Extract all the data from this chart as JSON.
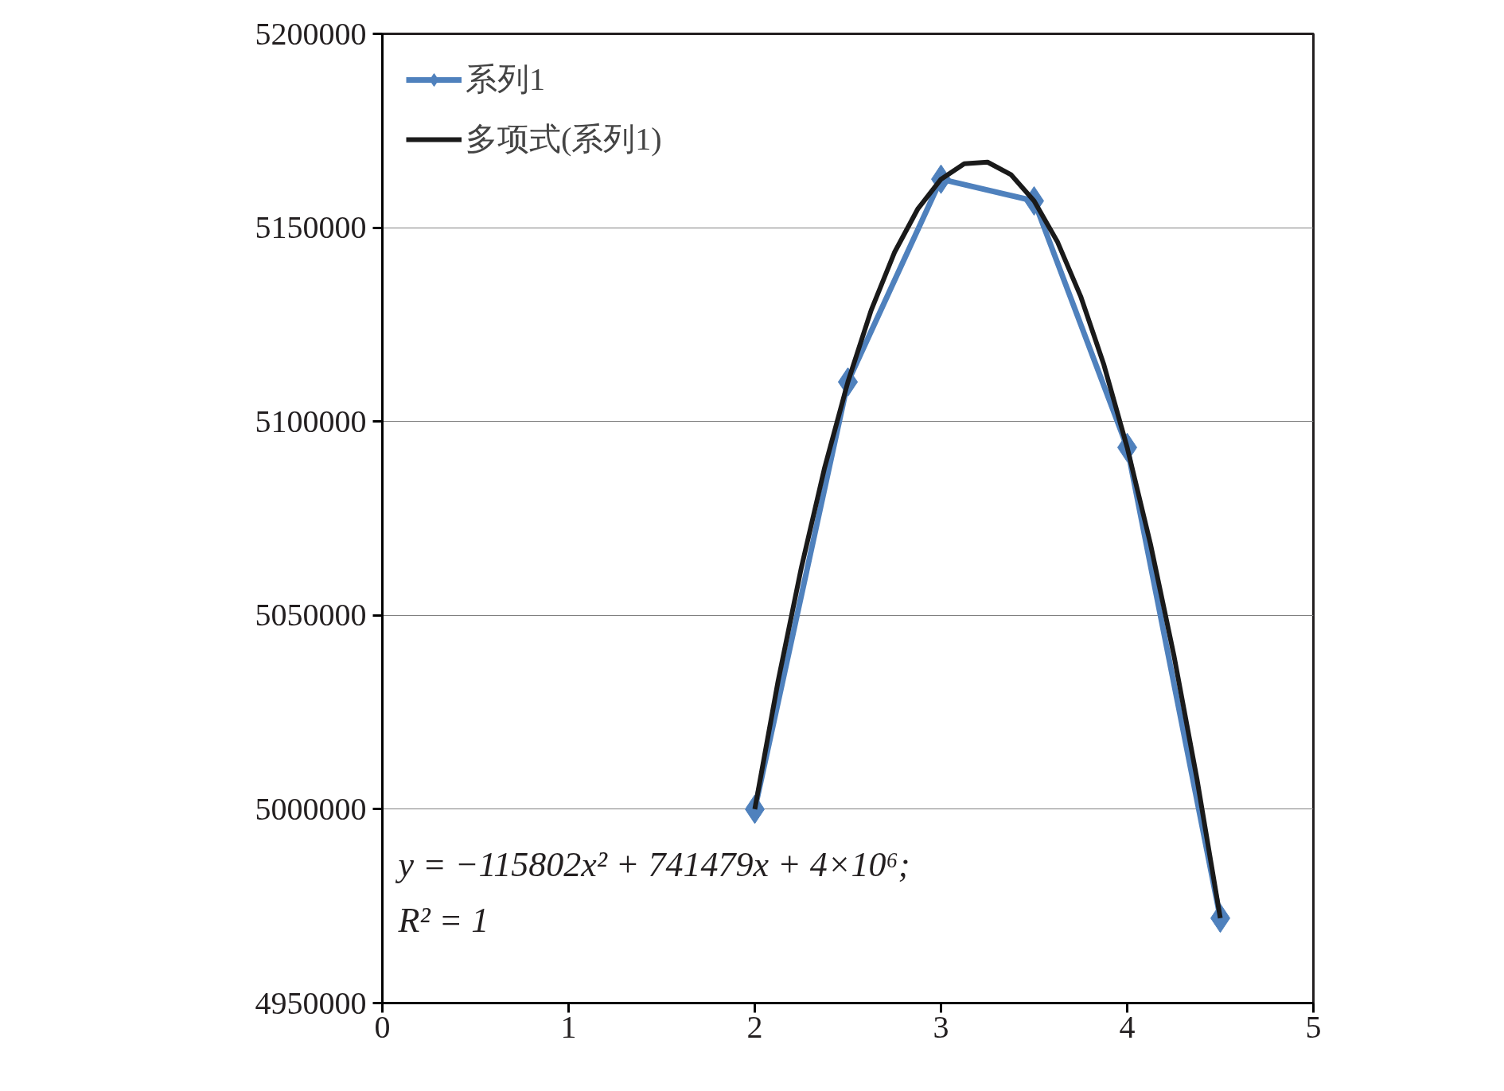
{
  "chart_data": {
    "type": "line",
    "x": [
      2,
      2.5,
      3,
      3.5,
      4,
      4.5
    ],
    "series": [
      {
        "name": "系列1",
        "color": "#4f81bd",
        "values": [
          5000000,
          5110200,
          5162500,
          5156900,
          5093300,
          4971900
        ],
        "marker": "diamond"
      },
      {
        "name": "多项式(系列1)",
        "type": "line",
        "color": "#1a1a1a",
        "marker": "none",
        "x": [
          2,
          2.125,
          2.25,
          2.375,
          2.5,
          2.625,
          2.75,
          2.875,
          3,
          3.125,
          3.25,
          3.375,
          3.5,
          3.625,
          3.75,
          3.875,
          4,
          4.125,
          4.25,
          4.375,
          4.5
        ],
        "values": [
          5000000,
          5033000,
          5062300,
          5088100,
          5110200,
          5128700,
          5143600,
          5154800,
          5162500,
          5166500,
          5166900,
          5163700,
          5156900,
          5146400,
          5132300,
          5114600,
          5093300,
          5068400,
          5039900,
          5007700,
          4971900
        ]
      }
    ],
    "xlim": [
      0,
      5
    ],
    "xticks": [
      0,
      1,
      2,
      3,
      4,
      5
    ],
    "ylim": [
      4950000,
      5200000
    ],
    "yticks": [
      4950000,
      5000000,
      5050000,
      5100000,
      5150000,
      5200000
    ],
    "grid": "y",
    "legend": "top left",
    "line_style": "solid",
    "annotations": [
      "y = −115802x² + 741479x + 4×10⁶;",
      "R² = 1"
    ]
  }
}
